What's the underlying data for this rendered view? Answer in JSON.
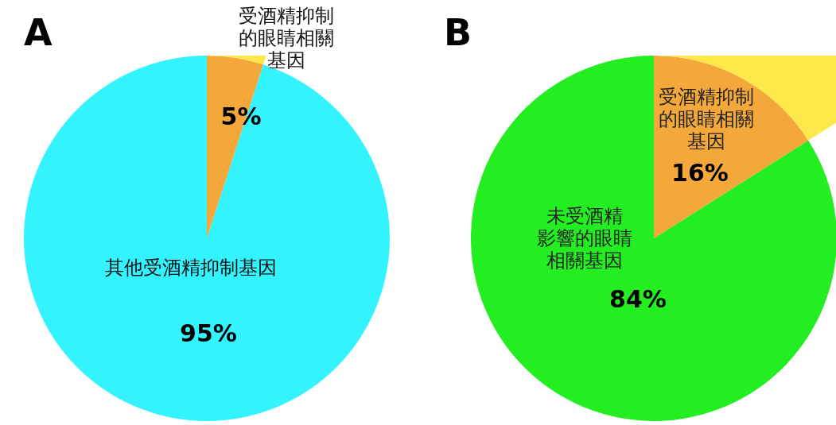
{
  "chart_data": [
    {
      "type": "pie",
      "title": "A",
      "categories": [
        "受酒精抑制的眼睛相關基因",
        "其他受酒精抑制基因"
      ],
      "values": [
        5,
        95
      ],
      "colors": [
        "#f5a83a",
        "#33f3ff"
      ],
      "value_labels": [
        "5%",
        "95%"
      ]
    },
    {
      "type": "pie",
      "title": "B",
      "categories": [
        "受酒精抑制的眼睛相關基因",
        "未受酒精影響的眼睛相關基因"
      ],
      "values": [
        16,
        84
      ],
      "colors": [
        "#f5a83a",
        "#22ee22"
      ],
      "value_labels": [
        "16%",
        "84%"
      ]
    }
  ]
}
